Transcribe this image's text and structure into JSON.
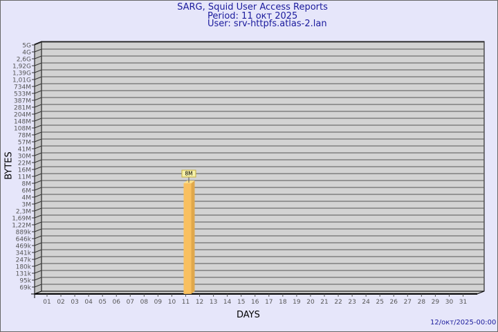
{
  "header": {
    "title": "SARG, Squid User Access Reports",
    "period": "Period: 11 окт 2025",
    "user": "User: srv-httpfs.atlas-2.lan"
  },
  "footer": {
    "generated": "12/окт/2025-00:00"
  },
  "colors": {
    "background": "#e6e6fa",
    "plot": "#d3d3d3",
    "bar": "#f9c060",
    "title": "#1a1a9c"
  },
  "chart_data": {
    "type": "bar",
    "xlabel": "DAYS",
    "ylabel": "BYTES",
    "y_scale": "log",
    "y_ticks": [
      "5G",
      "4G",
      "2,6G",
      "1,92G",
      "1,39G",
      "1,01G",
      "734M",
      "533M",
      "387M",
      "281M",
      "204M",
      "148M",
      "108M",
      "78M",
      "57M",
      "41M",
      "30M",
      "22M",
      "16M",
      "11M",
      "8M",
      "6M",
      "4M",
      "3M",
      "2,3M",
      "1,69M",
      "1,22M",
      "889k",
      "646k",
      "469k",
      "341k",
      "247k",
      "180k",
      "131k",
      "95k",
      "69k"
    ],
    "categories": [
      "01",
      "02",
      "03",
      "04",
      "05",
      "06",
      "07",
      "08",
      "09",
      "10",
      "11",
      "12",
      "13",
      "14",
      "15",
      "16",
      "17",
      "18",
      "19",
      "20",
      "21",
      "22",
      "23",
      "24",
      "25",
      "26",
      "27",
      "28",
      "29",
      "30",
      "31"
    ],
    "bars": [
      {
        "day": "11",
        "value_label": "8M",
        "level": "8M"
      }
    ],
    "grid": true
  }
}
